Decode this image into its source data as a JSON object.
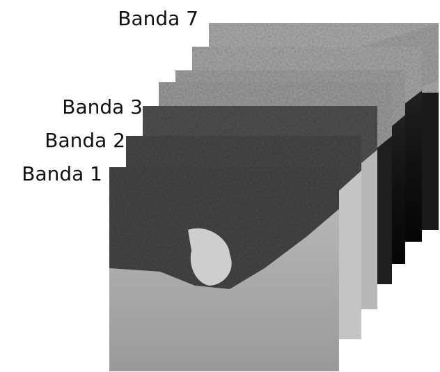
{
  "labels": [
    "Banda 7",
    "Banda 3",
    "Banda 2",
    "Banda 1"
  ]
}
